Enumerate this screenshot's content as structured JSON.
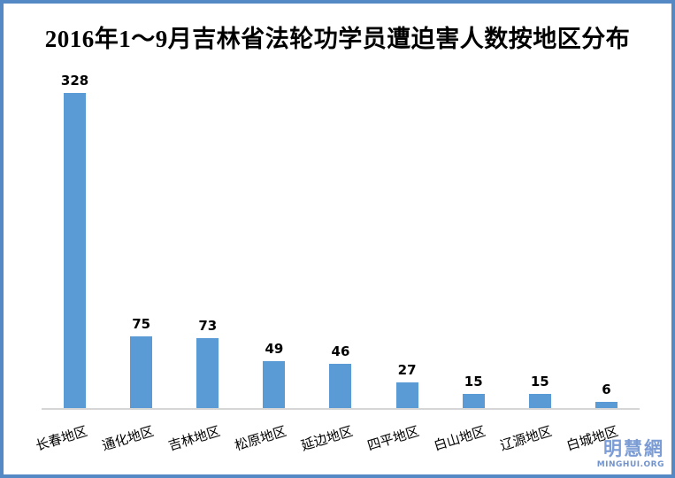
{
  "title": "2016年1～9月吉林省法轮功学员遭迫害人数按地区分布",
  "watermark": {
    "cjk": "明慧網",
    "latin": "MINGHUI.ORG"
  },
  "colors": {
    "bar": "#5b9bd5",
    "frame_border": "#5589c5",
    "axis_line": "#d6d6d6",
    "title_text": "#000000",
    "value_label_text": "#000000",
    "watermark_cjk": "#7b9cd4",
    "watermark_latin": "#7193ce"
  },
  "chart_data": {
    "type": "bar",
    "title": "2016年1～9月吉林省法轮功学员遭迫害人数按地区分布",
    "categories": [
      "长春地区",
      "通化地区",
      "吉林地区",
      "松原地区",
      "延边地区",
      "四平地区",
      "白山地区",
      "辽源地区",
      "白城地区"
    ],
    "values": [
      328,
      75,
      73,
      49,
      46,
      27,
      15,
      15,
      6
    ],
    "xlabel": "",
    "ylabel": "",
    "ylim": [
      0,
      328
    ],
    "grid": false,
    "legend": "none",
    "y_axis_visible": false,
    "data_labels": "above-bars",
    "bar_color": "#5b9bd5",
    "x_tick_rotation_deg": -17
  }
}
